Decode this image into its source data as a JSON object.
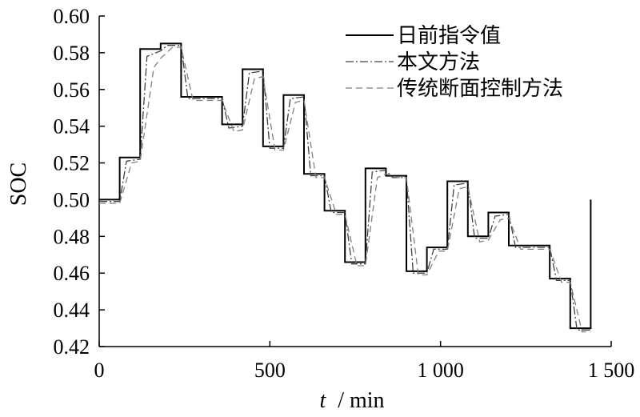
{
  "chart_data": {
    "type": "line",
    "xlabel_var": "t",
    "xlabel_unit": "/ min",
    "ylabel": "SOC",
    "xlim": [
      0,
      1500
    ],
    "ylim": [
      0.42,
      0.6
    ],
    "x_ticks": [
      {
        "value": 0,
        "label": "0"
      },
      {
        "value": 500,
        "label": "500"
      },
      {
        "value": 1000,
        "label": "1 000"
      },
      {
        "value": 1500,
        "label": "1 500"
      }
    ],
    "y_ticks": [
      {
        "value": 0.42,
        "label": "0.42"
      },
      {
        "value": 0.44,
        "label": "0.44"
      },
      {
        "value": 0.46,
        "label": "0.46"
      },
      {
        "value": 0.48,
        "label": "0.48"
      },
      {
        "value": 0.5,
        "label": "0.50"
      },
      {
        "value": 0.52,
        "label": "0.52"
      },
      {
        "value": 0.54,
        "label": "0.54"
      },
      {
        "value": 0.56,
        "label": "0.56"
      },
      {
        "value": 0.58,
        "label": "0.58"
      },
      {
        "value": 0.6,
        "label": "0.60"
      }
    ],
    "grid": false,
    "legend_position": "top-right",
    "series": [
      {
        "name": "日前指令值",
        "style": "solid",
        "color": "#000000",
        "x": [
          0,
          60,
          60,
          120,
          120,
          180,
          180,
          240,
          240,
          360,
          360,
          420,
          420,
          480,
          480,
          540,
          540,
          600,
          600,
          660,
          660,
          720,
          720,
          780,
          780,
          840,
          840,
          900,
          900,
          960,
          960,
          1020,
          1020,
          1080,
          1080,
          1140,
          1140,
          1200,
          1200,
          1320,
          1320,
          1380,
          1380,
          1440,
          1440
        ],
        "y": [
          0.5,
          0.5,
          0.523,
          0.523,
          0.582,
          0.582,
          0.585,
          0.585,
          0.556,
          0.556,
          0.541,
          0.541,
          0.571,
          0.571,
          0.529,
          0.529,
          0.557,
          0.557,
          0.514,
          0.514,
          0.494,
          0.494,
          0.466,
          0.466,
          0.517,
          0.517,
          0.513,
          0.513,
          0.461,
          0.461,
          0.474,
          0.474,
          0.51,
          0.51,
          0.48,
          0.48,
          0.493,
          0.493,
          0.475,
          0.475,
          0.457,
          0.457,
          0.43,
          0.43,
          0.5
        ]
      },
      {
        "name": "本文方法",
        "style": "dashdot",
        "color": "#404040",
        "x": [
          0,
          60,
          80,
          120,
          140,
          180,
          200,
          240,
          260,
          360,
          380,
          420,
          440,
          480,
          500,
          540,
          560,
          600,
          620,
          660,
          680,
          720,
          740,
          780,
          800,
          840,
          860,
          900,
          920,
          960,
          980,
          1020,
          1040,
          1080,
          1100,
          1140,
          1160,
          1200,
          1220,
          1320,
          1340,
          1380,
          1400,
          1440
        ],
        "y": [
          0.499,
          0.499,
          0.521,
          0.522,
          0.578,
          0.581,
          0.584,
          0.584,
          0.555,
          0.555,
          0.539,
          0.54,
          0.569,
          0.57,
          0.528,
          0.528,
          0.555,
          0.556,
          0.513,
          0.513,
          0.493,
          0.493,
          0.465,
          0.465,
          0.515,
          0.516,
          0.512,
          0.512,
          0.46,
          0.46,
          0.473,
          0.473,
          0.508,
          0.509,
          0.479,
          0.479,
          0.491,
          0.492,
          0.474,
          0.474,
          0.456,
          0.456,
          0.429,
          0.429
        ]
      },
      {
        "name": "传统断面控制方法",
        "style": "dashed",
        "color": "#808080",
        "x": [
          0,
          60,
          95,
          120,
          160,
          180,
          215,
          240,
          275,
          360,
          395,
          420,
          455,
          480,
          515,
          540,
          575,
          600,
          635,
          660,
          695,
          720,
          755,
          780,
          815,
          840,
          875,
          900,
          935,
          960,
          995,
          1020,
          1055,
          1080,
          1115,
          1140,
          1175,
          1200,
          1235,
          1320,
          1355,
          1380,
          1415,
          1440
        ],
        "y": [
          0.498,
          0.498,
          0.52,
          0.521,
          0.572,
          0.577,
          0.583,
          0.583,
          0.554,
          0.554,
          0.537,
          0.538,
          0.566,
          0.567,
          0.527,
          0.527,
          0.553,
          0.554,
          0.512,
          0.512,
          0.492,
          0.492,
          0.464,
          0.464,
          0.512,
          0.514,
          0.512,
          0.512,
          0.459,
          0.459,
          0.472,
          0.472,
          0.506,
          0.507,
          0.477,
          0.478,
          0.489,
          0.49,
          0.473,
          0.473,
          0.455,
          0.455,
          0.428,
          0.428
        ]
      }
    ]
  }
}
